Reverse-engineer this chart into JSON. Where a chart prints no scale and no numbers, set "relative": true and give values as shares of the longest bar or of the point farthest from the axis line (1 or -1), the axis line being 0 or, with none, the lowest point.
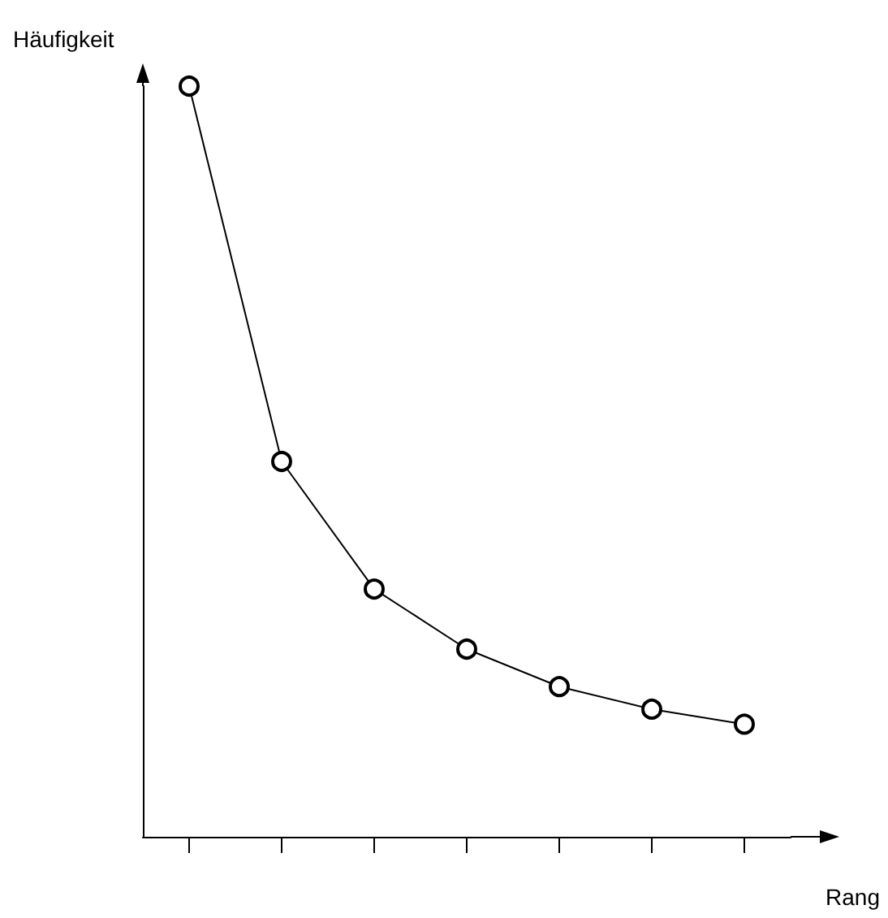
{
  "chart_data": {
    "type": "line",
    "xlabel": "Rang",
    "ylabel": "Häufigkeit",
    "relative": true,
    "categories": [
      null,
      null,
      null,
      null,
      null,
      null,
      null
    ],
    "values": [
      1,
      0.5,
      0.33,
      0.25,
      0.2,
      0.17,
      0.15
    ],
    "color": "#000000",
    "marker": "circle"
  }
}
